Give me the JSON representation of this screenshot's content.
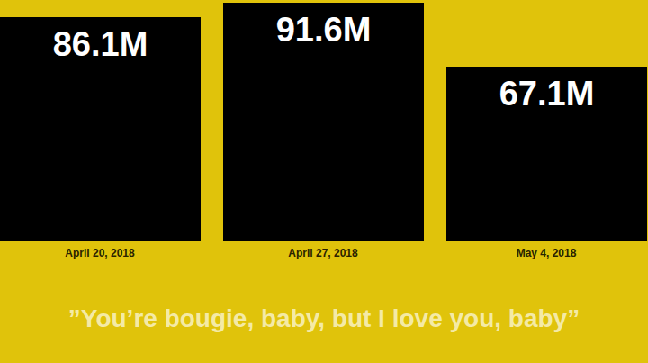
{
  "chart_data": {
    "type": "bar",
    "categories": [
      "April 20, 2018",
      "April 27, 2018",
      "May 4, 2018"
    ],
    "values": [
      86.1,
      91.6,
      67.1
    ],
    "value_labels": [
      "86.1M",
      "91.6M",
      "67.1M"
    ],
    "data_labels": true,
    "color": "#000000",
    "ylim": [
      0,
      91.6
    ],
    "tick_labels": "x",
    "grid": false,
    "annotations": [
      "”You’re bougie, baby, but I love you, baby”"
    ]
  }
}
